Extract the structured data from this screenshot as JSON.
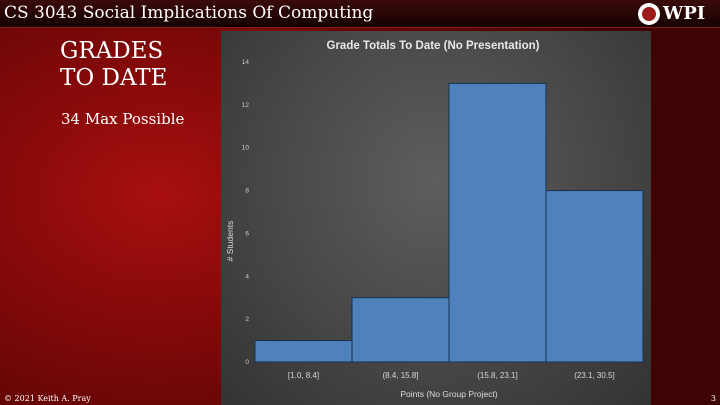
{
  "header": {
    "course_title": "CS 3043 Social Implications Of Computing",
    "logo_text": "WPI"
  },
  "slide": {
    "heading_line1": "GRADES",
    "heading_line2": "TO DATE",
    "subtext": "34 Max Possible"
  },
  "footer": {
    "copyright": "© 2021 Keith A. Pray",
    "page_number": "3"
  },
  "colors": {
    "bar_fill": "#4f81bd",
    "bar_stroke": "#17324f"
  },
  "chart_data": {
    "type": "bar",
    "title": "Grade Totals To Date (No Presentation)",
    "xlabel": "Points (No Group Project)",
    "ylabel": "# Students",
    "categories": [
      "[1.0, 8.4]",
      "(8.4, 15.8]",
      "(15.8, 23.1]",
      "(23.1, 30.5]"
    ],
    "values": [
      1,
      3,
      13,
      8
    ],
    "ylim": [
      0,
      14
    ],
    "yticks": [
      0,
      2,
      4,
      6,
      8,
      10,
      12,
      14
    ],
    "grid": false,
    "legend": "none"
  }
}
